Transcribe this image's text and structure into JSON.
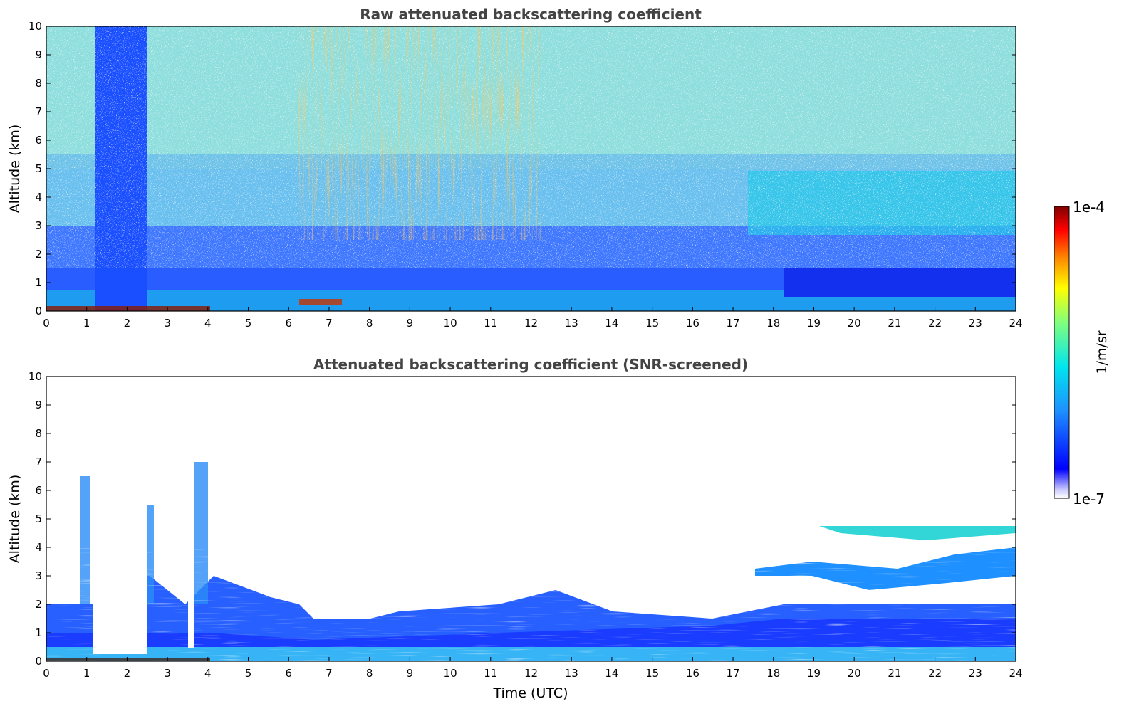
{
  "chart_data": [
    {
      "type": "heatmap",
      "title": "Raw attenuated backscattering coefficient",
      "xlabel": "",
      "ylabel": "Altitude (km)",
      "xlim": [
        0,
        24
      ],
      "ylim": [
        0,
        10
      ],
      "x_ticks": [
        "0",
        "1",
        "2",
        "3",
        "4",
        "5",
        "6",
        "7",
        "8",
        "9",
        "10",
        "11",
        "12",
        "13",
        "14",
        "15",
        "16",
        "17",
        "18",
        "19",
        "20",
        "21",
        "22",
        "23",
        "24"
      ],
      "y_ticks": [
        "0",
        "1",
        "2",
        "3",
        "4",
        "5",
        "6",
        "7",
        "8",
        "9",
        "10"
      ],
      "grid": false,
      "screened": false
    },
    {
      "type": "heatmap",
      "title": "Attenuated backscattering coefficient (SNR-screened)",
      "xlabel": "Time (UTC)",
      "ylabel": "Altitude (km)",
      "xlim": [
        0,
        24
      ],
      "ylim": [
        0,
        10
      ],
      "x_ticks": [
        "0",
        "1",
        "2",
        "3",
        "4",
        "5",
        "6",
        "7",
        "8",
        "9",
        "10",
        "11",
        "12",
        "13",
        "14",
        "15",
        "16",
        "17",
        "18",
        "19",
        "20",
        "21",
        "22",
        "23",
        "24"
      ],
      "y_ticks": [
        "0",
        "1",
        "2",
        "3",
        "4",
        "5",
        "6",
        "7",
        "8",
        "9",
        "10"
      ],
      "grid": false,
      "screened": true
    }
  ],
  "colorbar": {
    "label": "1/m/sr",
    "max_label": "1e-4",
    "min_label": "1e-7",
    "scale": "log",
    "range": [
      1e-07,
      0.0001
    ],
    "colormap": [
      "#ffffff",
      "#0000ff",
      "#1e90ff",
      "#00e5ee",
      "#7fff7f",
      "#ffff00",
      "#ff8c00",
      "#ff0000",
      "#800000"
    ]
  }
}
